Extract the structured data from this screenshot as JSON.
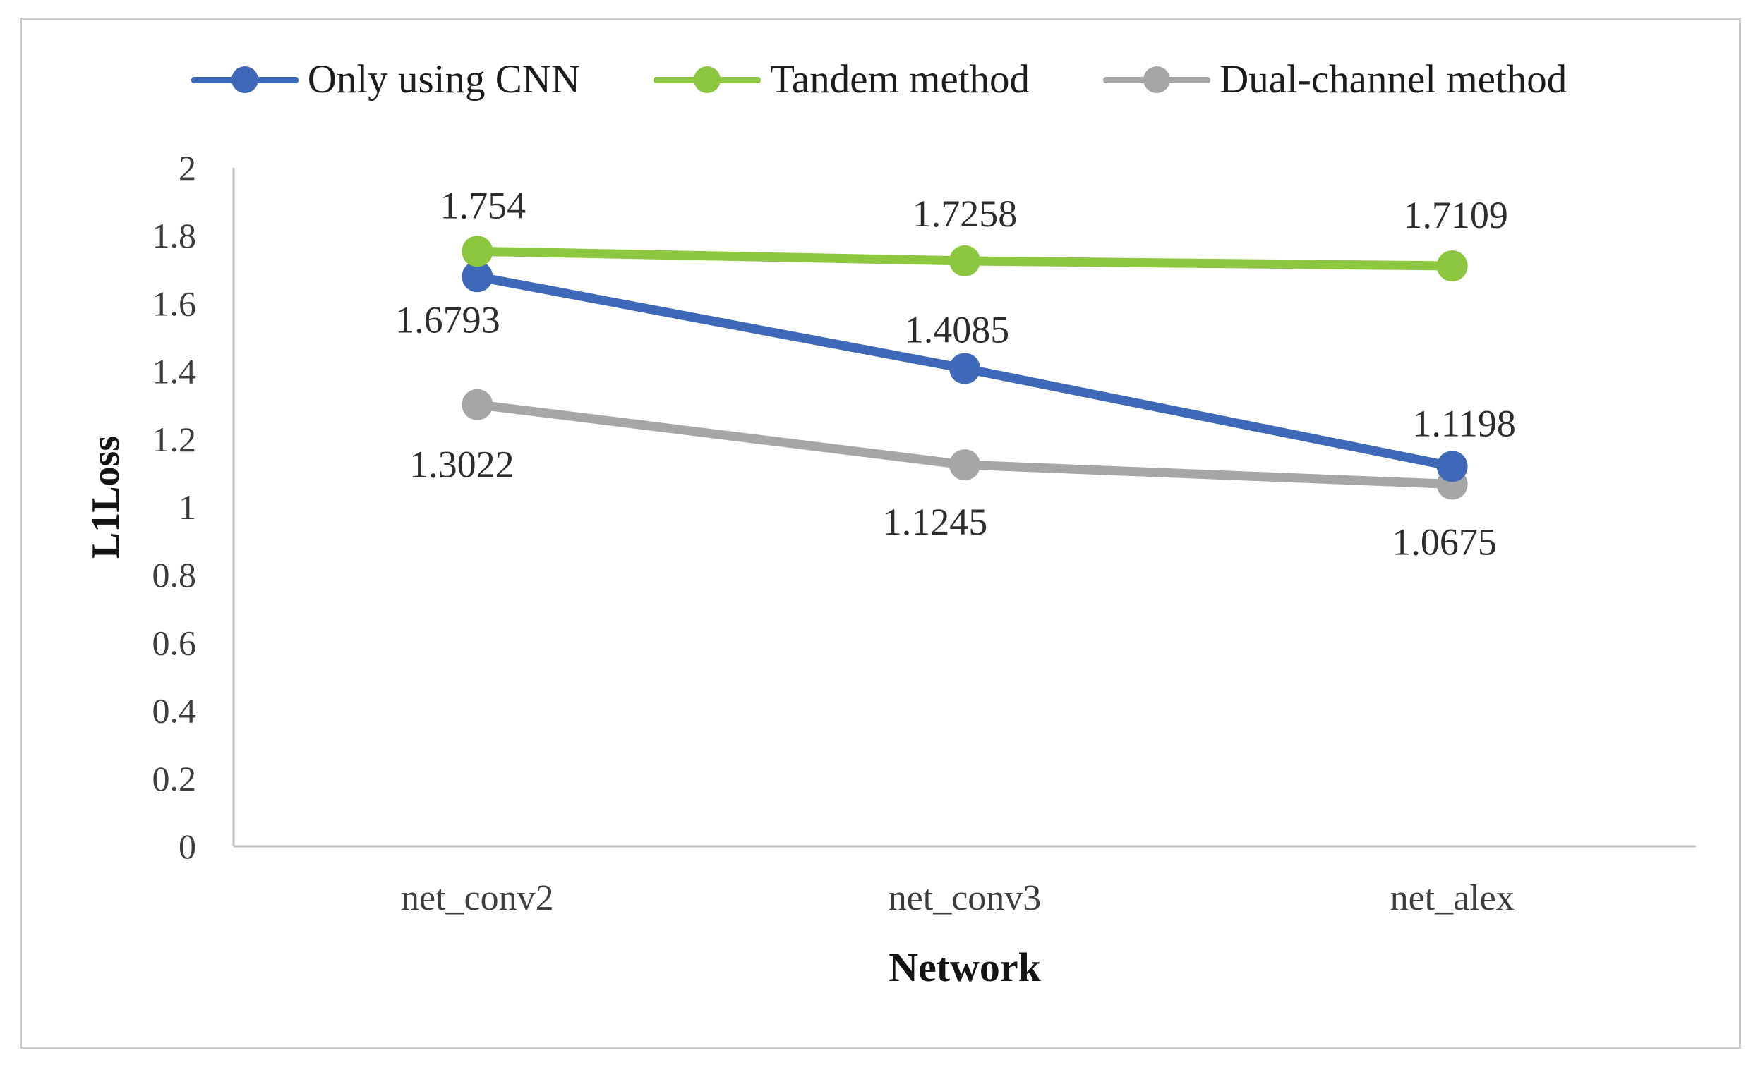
{
  "figure": {
    "background": "#ffffff",
    "border_color": "#c9c9c9"
  },
  "chart_data": {
    "type": "line",
    "categories": [
      "net_conv2",
      "net_conv3",
      "net_alex"
    ],
    "series": [
      {
        "name": "Only using CNN",
        "color": "#3e68b8",
        "values": [
          1.6793,
          1.4085,
          1.1198
        ],
        "data_labels": [
          "1.6793",
          "1.4085",
          "1.1198"
        ]
      },
      {
        "name": "Tandem method",
        "color": "#8dc63f",
        "values": [
          1.754,
          1.7258,
          1.7109
        ],
        "data_labels": [
          "1.754",
          "1.7258",
          "1.7109"
        ]
      },
      {
        "name": "Dual-channel method",
        "color": "#a6a6a6",
        "values": [
          1.3022,
          1.1245,
          1.0675
        ],
        "data_labels": [
          "1.3022",
          "1.1245",
          "1.0675"
        ]
      }
    ],
    "xlabel": "Network",
    "ylabel": "L1Loss",
    "ylim": [
      0,
      2
    ],
    "ytick_step": 0.2,
    "yticks": [
      "0",
      "0.2",
      "0.4",
      "0.6",
      "0.8",
      "1",
      "1.2",
      "1.4",
      "1.6",
      "1.8",
      "2"
    ],
    "grid": false,
    "legend_position": "top",
    "axis_line_color": "#bfbfbf"
  }
}
